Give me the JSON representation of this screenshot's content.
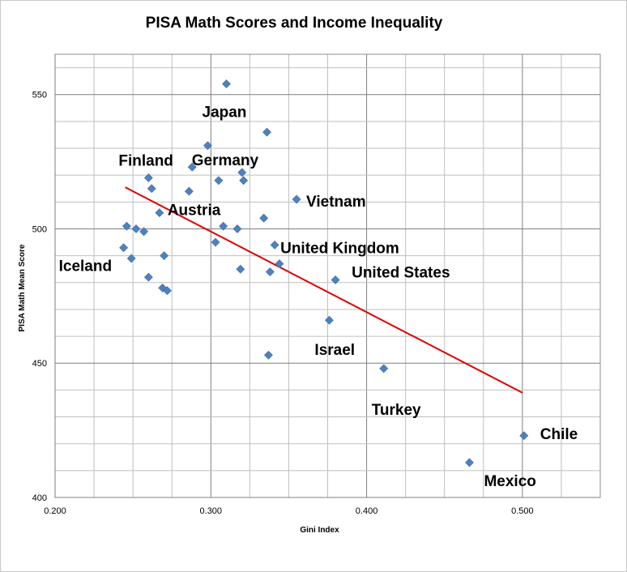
{
  "chart_data": {
    "type": "scatter",
    "title": "PISA Math Scores and Income Inequality",
    "xlabel": "Gini Index",
    "ylabel": "PISA Math Mean Score",
    "xlim": [
      0.2,
      0.55
    ],
    "ylim": [
      400,
      565
    ],
    "x_ticks": [
      "0.200",
      "0.300",
      "0.400",
      "0.500"
    ],
    "y_ticks": [
      "400",
      "450",
      "500",
      "550"
    ],
    "grid": true,
    "marker_color": "#4f81bd",
    "trendline_color": "#e00000",
    "points": [
      {
        "x": 0.31,
        "y": 554
      },
      {
        "x": 0.336,
        "y": 536
      },
      {
        "x": 0.298,
        "y": 531
      },
      {
        "x": 0.288,
        "y": 523
      },
      {
        "x": 0.32,
        "y": 521
      },
      {
        "x": 0.26,
        "y": 519
      },
      {
        "x": 0.305,
        "y": 518
      },
      {
        "x": 0.321,
        "y": 518
      },
      {
        "x": 0.262,
        "y": 515
      },
      {
        "x": 0.286,
        "y": 514
      },
      {
        "x": 0.355,
        "y": 511
      },
      {
        "x": 0.267,
        "y": 506
      },
      {
        "x": 0.334,
        "y": 504
      },
      {
        "x": 0.246,
        "y": 501
      },
      {
        "x": 0.308,
        "y": 501
      },
      {
        "x": 0.252,
        "y": 500
      },
      {
        "x": 0.317,
        "y": 500
      },
      {
        "x": 0.257,
        "y": 499
      },
      {
        "x": 0.303,
        "y": 495
      },
      {
        "x": 0.341,
        "y": 494
      },
      {
        "x": 0.244,
        "y": 493
      },
      {
        "x": 0.27,
        "y": 490
      },
      {
        "x": 0.249,
        "y": 489
      },
      {
        "x": 0.344,
        "y": 487
      },
      {
        "x": 0.319,
        "y": 485
      },
      {
        "x": 0.338,
        "y": 484
      },
      {
        "x": 0.26,
        "y": 482
      },
      {
        "x": 0.38,
        "y": 481
      },
      {
        "x": 0.269,
        "y": 478
      },
      {
        "x": 0.272,
        "y": 477
      },
      {
        "x": 0.376,
        "y": 466
      },
      {
        "x": 0.337,
        "y": 453
      },
      {
        "x": 0.411,
        "y": 448
      },
      {
        "x": 0.501,
        "y": 423
      },
      {
        "x": 0.466,
        "y": 413
      }
    ],
    "trendline": {
      "x": [
        0.245,
        0.5
      ],
      "y": [
        515.5,
        439
      ]
    },
    "annotations": [
      {
        "text": "Japan",
        "x": 0.31,
        "y": 554
      },
      {
        "text": "Finland",
        "x": 0.26,
        "y": 519
      },
      {
        "text": "Germany",
        "x": 0.32,
        "y": 521
      },
      {
        "text": "Vietnam",
        "x": 0.355,
        "y": 511
      },
      {
        "text": "Austria",
        "x": 0.267,
        "y": 506
      },
      {
        "text": "Iceland",
        "x": 0.244,
        "y": 493
      },
      {
        "text": "United Kingdom",
        "x": 0.341,
        "y": 494
      },
      {
        "text": "United States",
        "x": 0.38,
        "y": 481
      },
      {
        "text": "Israel",
        "x": 0.376,
        "y": 466
      },
      {
        "text": "Turkey",
        "x": 0.411,
        "y": 448
      },
      {
        "text": "Chile",
        "x": 0.501,
        "y": 423
      },
      {
        "text": "Mexico",
        "x": 0.466,
        "y": 413
      }
    ]
  }
}
